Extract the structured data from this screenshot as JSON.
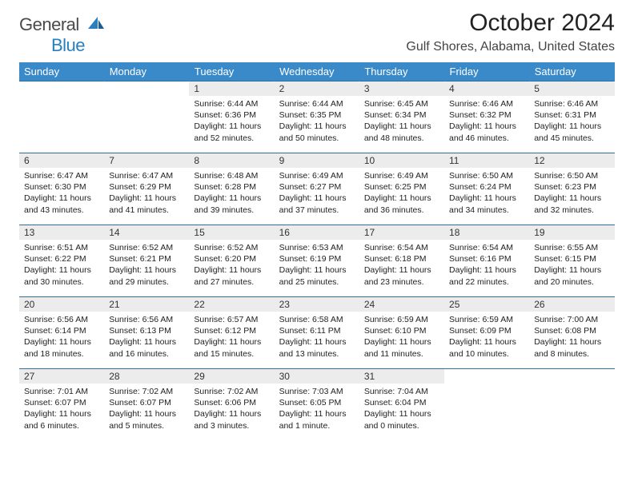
{
  "logo": {
    "word1": "General",
    "word2": "Blue"
  },
  "title": "October 2024",
  "location": "Gulf Shores, Alabama, United States",
  "colors": {
    "header_bg": "#3a89c9",
    "header_text": "#ffffff",
    "daynum_bg": "#ececec",
    "rule": "#2f6f9f",
    "logo_gray": "#4a4a4a",
    "logo_blue": "#2a7fbf"
  },
  "week_header": [
    "Sunday",
    "Monday",
    "Tuesday",
    "Wednesday",
    "Thursday",
    "Friday",
    "Saturday"
  ],
  "weeks": [
    [
      {
        "n": "",
        "body": ""
      },
      {
        "n": "",
        "body": ""
      },
      {
        "n": "1",
        "body": "Sunrise: 6:44 AM\nSunset: 6:36 PM\nDaylight: 11 hours and 52 minutes."
      },
      {
        "n": "2",
        "body": "Sunrise: 6:44 AM\nSunset: 6:35 PM\nDaylight: 11 hours and 50 minutes."
      },
      {
        "n": "3",
        "body": "Sunrise: 6:45 AM\nSunset: 6:34 PM\nDaylight: 11 hours and 48 minutes."
      },
      {
        "n": "4",
        "body": "Sunrise: 6:46 AM\nSunset: 6:32 PM\nDaylight: 11 hours and 46 minutes."
      },
      {
        "n": "5",
        "body": "Sunrise: 6:46 AM\nSunset: 6:31 PM\nDaylight: 11 hours and 45 minutes."
      }
    ],
    [
      {
        "n": "6",
        "body": "Sunrise: 6:47 AM\nSunset: 6:30 PM\nDaylight: 11 hours and 43 minutes."
      },
      {
        "n": "7",
        "body": "Sunrise: 6:47 AM\nSunset: 6:29 PM\nDaylight: 11 hours and 41 minutes."
      },
      {
        "n": "8",
        "body": "Sunrise: 6:48 AM\nSunset: 6:28 PM\nDaylight: 11 hours and 39 minutes."
      },
      {
        "n": "9",
        "body": "Sunrise: 6:49 AM\nSunset: 6:27 PM\nDaylight: 11 hours and 37 minutes."
      },
      {
        "n": "10",
        "body": "Sunrise: 6:49 AM\nSunset: 6:25 PM\nDaylight: 11 hours and 36 minutes."
      },
      {
        "n": "11",
        "body": "Sunrise: 6:50 AM\nSunset: 6:24 PM\nDaylight: 11 hours and 34 minutes."
      },
      {
        "n": "12",
        "body": "Sunrise: 6:50 AM\nSunset: 6:23 PM\nDaylight: 11 hours and 32 minutes."
      }
    ],
    [
      {
        "n": "13",
        "body": "Sunrise: 6:51 AM\nSunset: 6:22 PM\nDaylight: 11 hours and 30 minutes."
      },
      {
        "n": "14",
        "body": "Sunrise: 6:52 AM\nSunset: 6:21 PM\nDaylight: 11 hours and 29 minutes."
      },
      {
        "n": "15",
        "body": "Sunrise: 6:52 AM\nSunset: 6:20 PM\nDaylight: 11 hours and 27 minutes."
      },
      {
        "n": "16",
        "body": "Sunrise: 6:53 AM\nSunset: 6:19 PM\nDaylight: 11 hours and 25 minutes."
      },
      {
        "n": "17",
        "body": "Sunrise: 6:54 AM\nSunset: 6:18 PM\nDaylight: 11 hours and 23 minutes."
      },
      {
        "n": "18",
        "body": "Sunrise: 6:54 AM\nSunset: 6:16 PM\nDaylight: 11 hours and 22 minutes."
      },
      {
        "n": "19",
        "body": "Sunrise: 6:55 AM\nSunset: 6:15 PM\nDaylight: 11 hours and 20 minutes."
      }
    ],
    [
      {
        "n": "20",
        "body": "Sunrise: 6:56 AM\nSunset: 6:14 PM\nDaylight: 11 hours and 18 minutes."
      },
      {
        "n": "21",
        "body": "Sunrise: 6:56 AM\nSunset: 6:13 PM\nDaylight: 11 hours and 16 minutes."
      },
      {
        "n": "22",
        "body": "Sunrise: 6:57 AM\nSunset: 6:12 PM\nDaylight: 11 hours and 15 minutes."
      },
      {
        "n": "23",
        "body": "Sunrise: 6:58 AM\nSunset: 6:11 PM\nDaylight: 11 hours and 13 minutes."
      },
      {
        "n": "24",
        "body": "Sunrise: 6:59 AM\nSunset: 6:10 PM\nDaylight: 11 hours and 11 minutes."
      },
      {
        "n": "25",
        "body": "Sunrise: 6:59 AM\nSunset: 6:09 PM\nDaylight: 11 hours and 10 minutes."
      },
      {
        "n": "26",
        "body": "Sunrise: 7:00 AM\nSunset: 6:08 PM\nDaylight: 11 hours and 8 minutes."
      }
    ],
    [
      {
        "n": "27",
        "body": "Sunrise: 7:01 AM\nSunset: 6:07 PM\nDaylight: 11 hours and 6 minutes."
      },
      {
        "n": "28",
        "body": "Sunrise: 7:02 AM\nSunset: 6:07 PM\nDaylight: 11 hours and 5 minutes."
      },
      {
        "n": "29",
        "body": "Sunrise: 7:02 AM\nSunset: 6:06 PM\nDaylight: 11 hours and 3 minutes."
      },
      {
        "n": "30",
        "body": "Sunrise: 7:03 AM\nSunset: 6:05 PM\nDaylight: 11 hours and 1 minute."
      },
      {
        "n": "31",
        "body": "Sunrise: 7:04 AM\nSunset: 6:04 PM\nDaylight: 11 hours and 0 minutes."
      },
      {
        "n": "",
        "body": ""
      },
      {
        "n": "",
        "body": ""
      }
    ]
  ]
}
